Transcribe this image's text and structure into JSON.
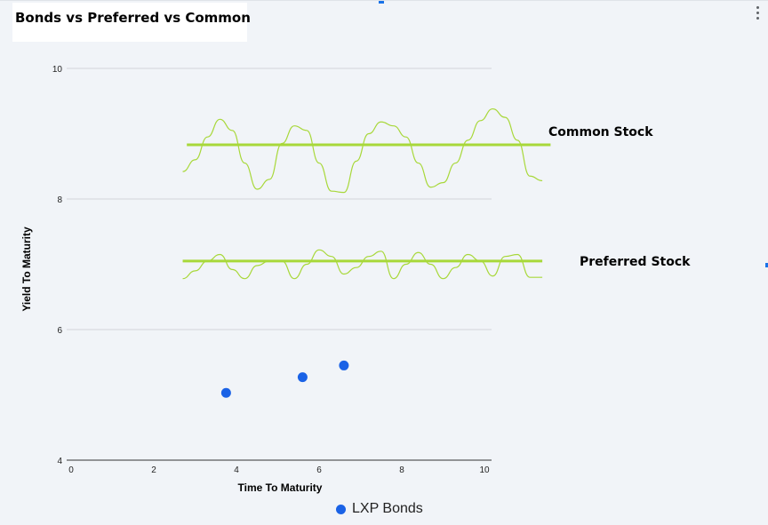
{
  "chart_data": {
    "type": "scatter",
    "title": "Bonds vs Preferred vs Common",
    "xlabel": "Time To Maturity",
    "ylabel": "Yield To Maturity",
    "xlim": [
      0,
      10
    ],
    "ylim": [
      4,
      10
    ],
    "x_ticks": [
      0,
      2,
      4,
      6,
      8,
      10
    ],
    "y_ticks": [
      4,
      6,
      8,
      10
    ],
    "grid": "horizontal",
    "legend_position": "bottom",
    "series": [
      {
        "name": "LXP Bonds",
        "color": "#1a62e6",
        "points": [
          {
            "x": 3.75,
            "y": 5.03
          },
          {
            "x": 5.6,
            "y": 5.27
          },
          {
            "x": 6.6,
            "y": 5.45
          }
        ]
      }
    ],
    "annotations": [
      {
        "label": "Common Stock",
        "level": 8.83,
        "x_range": [
          2.8,
          11.6
        ],
        "color": "#a8d83a",
        "wave_x": [
          2.7,
          3.0,
          3.3,
          3.6,
          3.9,
          4.2,
          4.5,
          4.8,
          5.1,
          5.4,
          5.7,
          6.0,
          6.3,
          6.6,
          6.9,
          7.2,
          7.5,
          7.8,
          8.1,
          8.4,
          8.7,
          9.0,
          9.3,
          9.6,
          9.9,
          10.2,
          10.5,
          10.8,
          11.1,
          11.4
        ],
        "wave_y": [
          8.42,
          8.6,
          8.95,
          9.22,
          9.05,
          8.55,
          8.15,
          8.3,
          8.85,
          9.12,
          9.05,
          8.55,
          8.12,
          8.1,
          8.58,
          9.0,
          9.18,
          9.12,
          8.95,
          8.55,
          8.18,
          8.25,
          8.55,
          8.9,
          9.2,
          9.38,
          9.25,
          8.9,
          8.35,
          8.28
        ]
      },
      {
        "label": "Preferred Stock",
        "level": 7.05,
        "x_range": [
          2.7,
          11.4
        ],
        "color": "#a8d83a",
        "wave_x": [
          2.7,
          3.0,
          3.3,
          3.6,
          3.9,
          4.2,
          4.5,
          4.8,
          5.1,
          5.4,
          5.7,
          6.0,
          6.3,
          6.6,
          6.9,
          7.2,
          7.5,
          7.8,
          8.1,
          8.4,
          8.7,
          9.0,
          9.3,
          9.6,
          9.9,
          10.2,
          10.5,
          10.8,
          11.1,
          11.4
        ],
        "wave_y": [
          6.78,
          6.9,
          7.05,
          7.15,
          6.92,
          6.78,
          6.98,
          7.05,
          7.05,
          6.78,
          7.0,
          7.22,
          7.12,
          6.85,
          6.95,
          7.12,
          7.2,
          6.78,
          7.0,
          7.18,
          7.0,
          6.78,
          6.95,
          7.15,
          7.05,
          6.82,
          7.12,
          7.15,
          6.8,
          6.8
        ]
      }
    ]
  }
}
